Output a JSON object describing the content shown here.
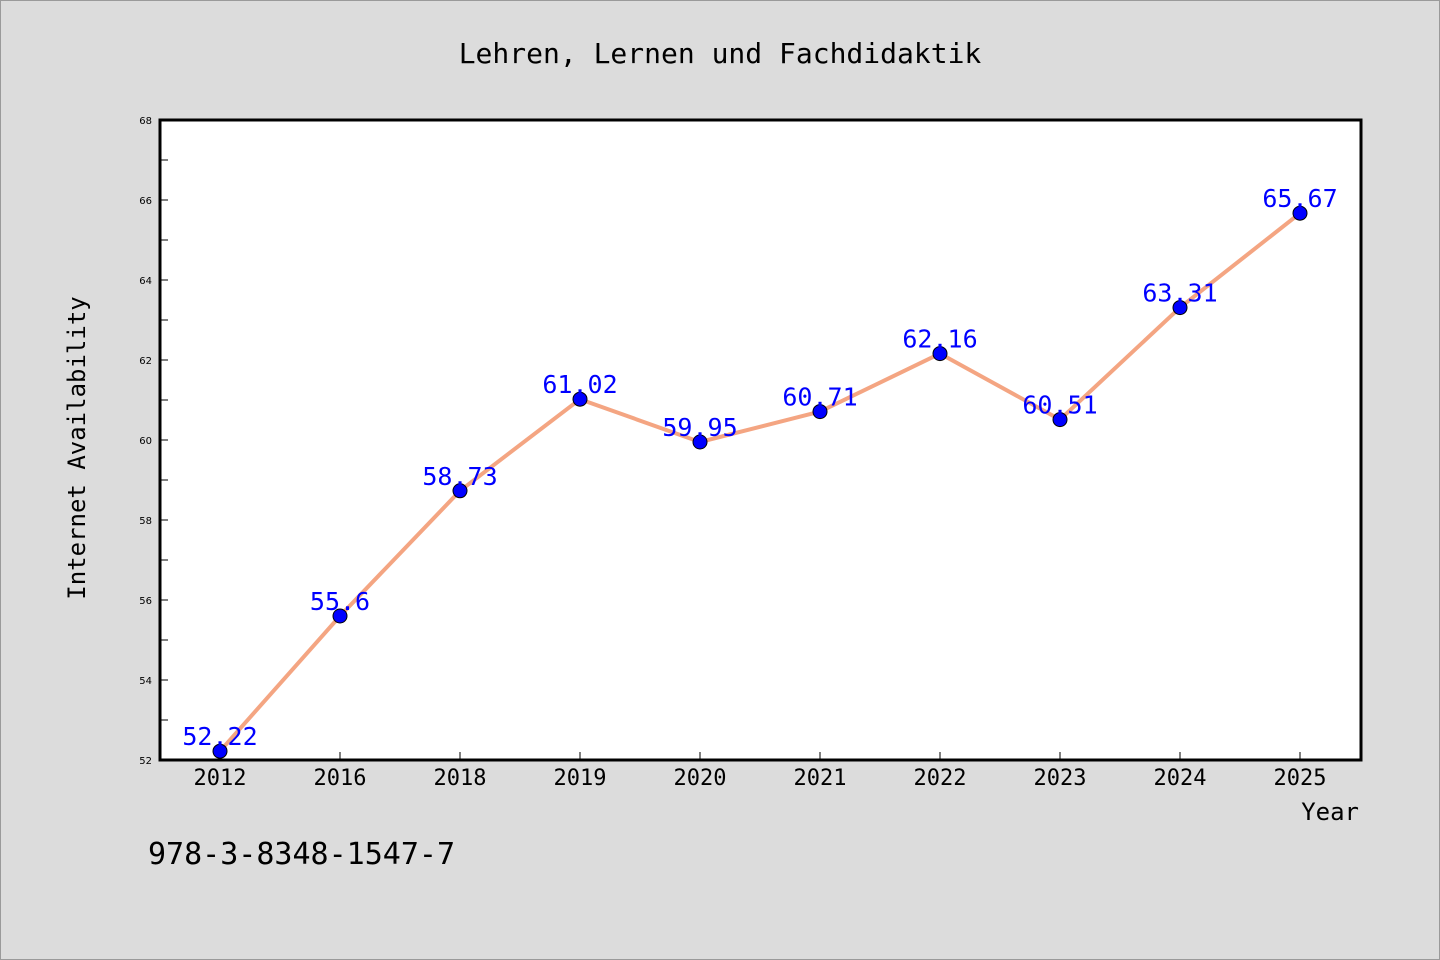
{
  "chart_data": {
    "type": "line",
    "title": "Lehren, Lernen und Fachdidaktik",
    "xlabel": "Year",
    "ylabel": "Internet Availability",
    "categories": [
      "2012",
      "2016",
      "2018",
      "2019",
      "2020",
      "2021",
      "2022",
      "2023",
      "2024",
      "2025"
    ],
    "values": [
      52.22,
      55.6,
      58.73,
      61.02,
      59.95,
      60.71,
      62.16,
      60.51,
      63.31,
      65.67
    ],
    "data_labels": [
      "52.22",
      "55.6",
      "58.73",
      "61.02",
      "59.95",
      "60.71",
      "62.16",
      "60.51",
      "63.31",
      "65.67"
    ],
    "ylim": [
      52,
      68
    ],
    "yticks": [
      52,
      54,
      56,
      58,
      60,
      62,
      64,
      66,
      68
    ],
    "grid": false,
    "legend": "none",
    "line_color": "#f4a582",
    "marker_color": "#0000ff",
    "label_color": "#0000ff"
  },
  "footer": {
    "isbn": "978-3-8348-1547-7"
  }
}
